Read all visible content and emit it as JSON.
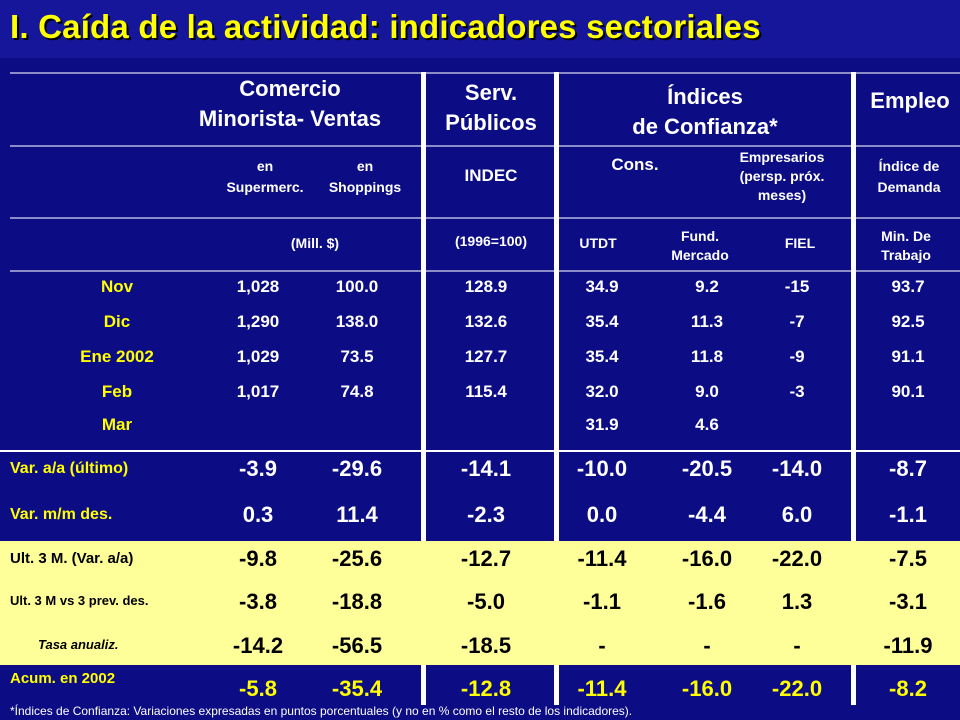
{
  "title": "I. Caída de la actividad: indicadores sectoriales",
  "headers": {
    "comercio_1": "Comercio",
    "comercio_2": "Minorista- Ventas",
    "serv_1": "Serv.",
    "serv_2": "Públicos",
    "indices_1": "Índices",
    "indices_2": "de Confianza*",
    "empleo": "Empleo",
    "en_super_1": "en",
    "en_super_2": "Supermerc.",
    "en_shop_1": "en",
    "en_shop_2": "Shoppings",
    "indec": "INDEC",
    "cons": "Cons.",
    "empresarios_1": "Empresarios",
    "empresarios_2": "(persp. próx.",
    "empresarios_3": "meses)",
    "indice_dem_1": "Índice de",
    "indice_dem_2": "Demanda",
    "mill": "(Mill. $)",
    "base": "(1996=100)",
    "utdt": "UTDT",
    "fund_1": "Fund.",
    "fund_2": "Mercado",
    "fiel": "FIEL",
    "min_1": "Min. De",
    "min_2": "Trabajo"
  },
  "months": [
    {
      "label": "Nov",
      "values": [
        "1,028",
        "100.0",
        "128.9",
        "34.9",
        "9.2",
        "-15",
        "93.7"
      ]
    },
    {
      "label": "Dic",
      "values": [
        "1,290",
        "138.0",
        "132.6",
        "35.4",
        "11.3",
        "-7",
        "92.5"
      ]
    },
    {
      "label": "Ene 2002",
      "values": [
        "1,029",
        "73.5",
        "127.7",
        "35.4",
        "11.8",
        "-9",
        "91.1"
      ]
    },
    {
      "label": "Feb",
      "values": [
        "1,017",
        "74.8",
        "115.4",
        "32.0",
        "9.0",
        "-3",
        "90.1"
      ]
    },
    {
      "label": "Mar",
      "values": [
        "",
        "",
        "",
        "31.9",
        "4.6",
        "",
        ""
      ]
    }
  ],
  "variations": [
    {
      "label": "Var. a/a (último)",
      "values": [
        "-3.9",
        "-29.6",
        "-14.1",
        "-10.0",
        "-20.5",
        "-14.0",
        "-8.7"
      ]
    },
    {
      "label": "Var. m/m des.",
      "values": [
        "0.3",
        "11.4",
        "-2.3",
        "0.0",
        "-4.4",
        "6.0",
        "-1.1"
      ]
    }
  ],
  "band_rows": [
    {
      "label": "Ult. 3 M.  (Var. a/a)",
      "values": [
        "-9.8",
        "-25.6",
        "-12.7",
        "-11.4",
        "-16.0",
        "-22.0",
        "-7.5"
      ]
    },
    {
      "label": "Ult. 3 M vs 3 prev. des.",
      "values": [
        "-3.8",
        "-18.8",
        "-5.0",
        "-1.1",
        "-1.6",
        "1.3",
        "-3.1"
      ]
    },
    {
      "label": "Tasa anualiz.",
      "values": [
        "-14.2",
        "-56.5",
        "-18.5",
        "-",
        "-",
        "-",
        "-11.9"
      ]
    }
  ],
  "acum": {
    "label": "Acum. en 2002",
    "values": [
      "-5.8",
      "-35.4",
      "-12.8",
      "-11.4",
      "-16.0",
      "-22.0",
      "-8.2"
    ]
  },
  "footnote": "*Índices de Confianza: Variaciones expresadas en puntos porcentuales (y no en % como el resto de los indicadores).",
  "colors": {
    "background": "#0c0c84",
    "title": "#ffff00",
    "band": "#ffff99",
    "label": "#ffff00"
  }
}
